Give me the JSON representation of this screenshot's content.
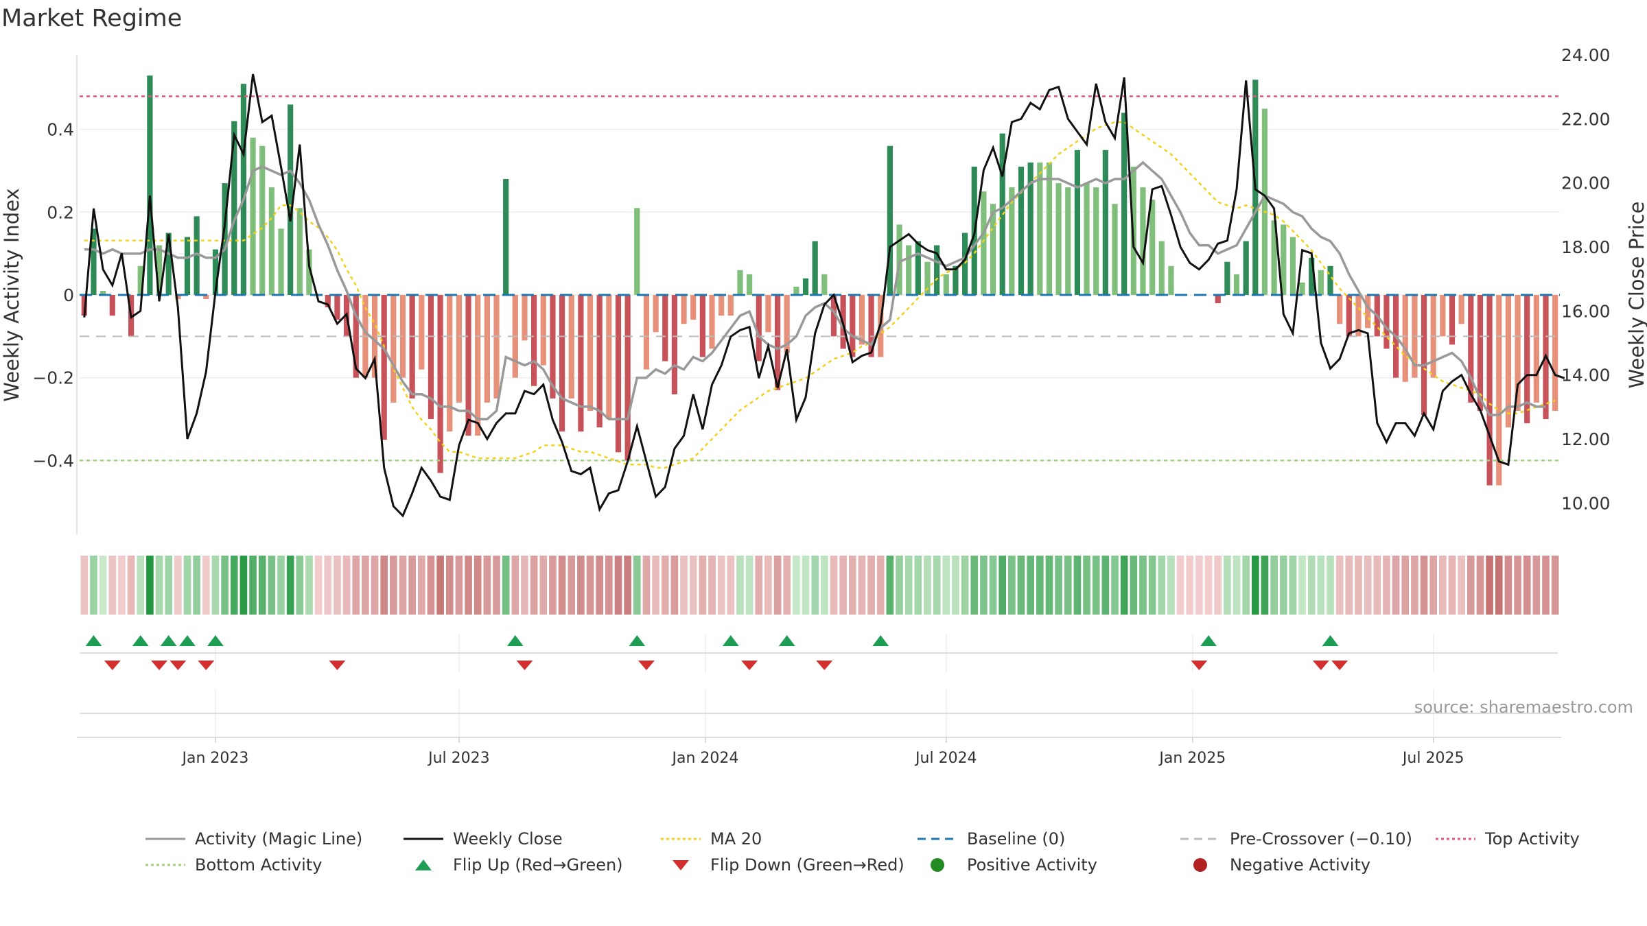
{
  "chart_data": {
    "type": "bar",
    "title": "Market Regime",
    "source_note": "source: sharemaestro.com",
    "y_left_label": "Weekly Activity Index",
    "y_right_label": "Weekly Close Price",
    "y_left_ticks": [
      "0.4",
      "0.2",
      "0",
      "−0.2",
      "−0.4"
    ],
    "y_left_tick_values": [
      0.4,
      0.2,
      0,
      -0.2,
      -0.4
    ],
    "y_right_ticks": [
      "24.00",
      "22.00",
      "20.00",
      "18.00",
      "16.00",
      "14.00",
      "12.00",
      "10.00"
    ],
    "y_right_tick_values": [
      24,
      22,
      20,
      18,
      16,
      14,
      12,
      10
    ],
    "y_left_range": [
      -0.58,
      0.58
    ],
    "y_right_range": [
      9.0,
      24.0
    ],
    "x_tick_labels": [
      "Jan 2023",
      "Jul 2023",
      "Jan 2024",
      "Jul 2024",
      "Jan 2025",
      "Jul 2025"
    ],
    "x_tick_weeks": [
      14,
      40,
      66.3,
      92,
      118.3,
      144
    ],
    "reference_lines": {
      "baseline": 0,
      "pre_crossover": -0.1,
      "top_activity": 0.48,
      "bottom_activity": -0.4
    },
    "activity": [
      -0.05,
      0.16,
      0.01,
      -0.05,
      0,
      -0.1,
      0.07,
      0.53,
      0.12,
      0.15,
      -0.01,
      0.14,
      0.19,
      -0.01,
      0.11,
      0.27,
      0.42,
      0.51,
      0.38,
      0.36,
      0.26,
      0.16,
      0.46,
      0.21,
      0.11,
      0,
      -0.03,
      -0.06,
      -0.1,
      -0.2,
      -0.2,
      -0.2,
      -0.35,
      -0.26,
      -0.2,
      -0.25,
      -0.18,
      -0.3,
      -0.43,
      -0.33,
      -0.26,
      -0.34,
      -0.34,
      -0.26,
      -0.25,
      0.28,
      -0.2,
      -0.11,
      -0.22,
      -0.17,
      -0.25,
      -0.33,
      -0.25,
      -0.33,
      -0.28,
      -0.32,
      -0.3,
      -0.38,
      -0.4,
      0.21,
      -0.18,
      -0.09,
      -0.16,
      -0.24,
      -0.07,
      -0.06,
      -0.15,
      -0.13,
      -0.05,
      -0.05,
      0.06,
      0.05,
      -0.16,
      -0.09,
      -0.23,
      -0.14,
      0.02,
      0.04,
      0.13,
      0.05,
      -0.1,
      -0.13,
      -0.15,
      -0.12,
      -0.15,
      -0.15,
      0.36,
      0.17,
      0.12,
      0.13,
      0.08,
      0.12,
      0.05,
      0.07,
      0.15,
      0.31,
      0.25,
      0.22,
      0.39,
      0.26,
      0.31,
      0.32,
      0.32,
      0.32,
      0.27,
      0.26,
      0.35,
      0.27,
      0.26,
      0.35,
      0.22,
      0.44,
      0.31,
      0.26,
      0.23,
      0.13,
      0.07,
      0,
      0,
      0,
      0,
      -0.02,
      0.08,
      0.05,
      0.13,
      0.52,
      0.45,
      0.18,
      0.17,
      0.14,
      0.03,
      0.09,
      0.06,
      0.07,
      -0.07,
      -0.1,
      -0.1,
      -0.08,
      -0.1,
      -0.13,
      -0.2,
      -0.21,
      -0.2,
      -0.29,
      -0.2,
      -0.1,
      -0.12,
      -0.07,
      -0.26,
      -0.28,
      -0.46,
      -0.46,
      -0.32,
      -0.28,
      -0.31,
      -0.26,
      -0.3,
      -0.28
    ],
    "activity_magic_line": [
      0.11,
      0.11,
      0.1,
      0.11,
      0.1,
      0.1,
      0.1,
      0.11,
      0.11,
      0.1,
      0.09,
      0.09,
      0.1,
      0.09,
      0.09,
      0.11,
      0.18,
      0.23,
      0.3,
      0.31,
      0.3,
      0.29,
      0.3,
      0.27,
      0.23,
      0.17,
      0.12,
      0.06,
      0.01,
      -0.05,
      -0.09,
      -0.11,
      -0.13,
      -0.17,
      -0.21,
      -0.24,
      -0.24,
      -0.25,
      -0.27,
      -0.27,
      -0.28,
      -0.28,
      -0.3,
      -0.3,
      -0.28,
      -0.15,
      -0.16,
      -0.17,
      -0.16,
      -0.18,
      -0.22,
      -0.25,
      -0.26,
      -0.27,
      -0.27,
      -0.28,
      -0.3,
      -0.3,
      -0.3,
      -0.2,
      -0.2,
      -0.18,
      -0.19,
      -0.17,
      -0.18,
      -0.15,
      -0.16,
      -0.14,
      -0.11,
      -0.08,
      -0.05,
      -0.04,
      -0.1,
      -0.12,
      -0.13,
      -0.12,
      -0.1,
      -0.05,
      -0.03,
      -0.02,
      -0.04,
      -0.08,
      -0.1,
      -0.11,
      -0.12,
      -0.08,
      -0.06,
      0.08,
      0.09,
      0.1,
      0.09,
      0.08,
      0.07,
      0.08,
      0.09,
      0.12,
      0.15,
      0.2,
      0.21,
      0.23,
      0.25,
      0.27,
      0.28,
      0.28,
      0.28,
      0.27,
      0.26,
      0.27,
      0.28,
      0.27,
      0.28,
      0.28,
      0.3,
      0.32,
      0.3,
      0.28,
      0.24,
      0.2,
      0.15,
      0.12,
      0.12,
      0.1,
      0.11,
      0.12,
      0.16,
      0.2,
      0.24,
      0.23,
      0.22,
      0.2,
      0.19,
      0.16,
      0.14,
      0.13,
      0.1,
      0.05,
      0.01,
      -0.03,
      -0.05,
      -0.08,
      -0.1,
      -0.13,
      -0.17,
      -0.17,
      -0.16,
      -0.15,
      -0.14,
      -0.16,
      -0.2,
      -0.25,
      -0.29,
      -0.29,
      -0.27,
      -0.27,
      -0.26,
      -0.27,
      -0.27
    ],
    "weekly_close": [
      15.8,
      19.2,
      17.3,
      16.8,
      17.8,
      15.8,
      16.0,
      19.6,
      16.3,
      18.4,
      16.1,
      12.0,
      12.8,
      14.1,
      16.6,
      18.7,
      21.5,
      20.9,
      23.4,
      21.9,
      22.1,
      20.5,
      18.8,
      21.2,
      17.4,
      16.3,
      16.2,
      15.6,
      15.9,
      14.2,
      13.9,
      14.5,
      11.1,
      9.9,
      9.6,
      10.3,
      11.1,
      10.7,
      10.2,
      10.1,
      11.8,
      12.6,
      12.5,
      12.0,
      12.5,
      12.8,
      12.8,
      13.5,
      13.4,
      13.7,
      12.6,
      11.9,
      11.0,
      10.9,
      11.1,
      9.8,
      10.3,
      10.4,
      11.3,
      12.4,
      11.3,
      10.2,
      10.5,
      11.7,
      12.1,
      13.4,
      12.3,
      13.7,
      14.3,
      15.2,
      15.4,
      15.5,
      13.9,
      14.9,
      13.6,
      14.8,
      12.6,
      13.3,
      15.3,
      16.2,
      16.5,
      15.6,
      14.4,
      14.6,
      14.7,
      15.6,
      18.0,
      18.2,
      18.4,
      18.1,
      17.9,
      17.8,
      17.3,
      17.3,
      17.6,
      18.4,
      20.4,
      21.1,
      20.2,
      21.9,
      22.0,
      22.5,
      22.3,
      22.9,
      23.0,
      22.0,
      21.6,
      21.2,
      23.1,
      21.9,
      21.4,
      23.3,
      18.0,
      17.5,
      19.8,
      19.9,
      19.0,
      18.0,
      17.5,
      17.3,
      17.6,
      18.1,
      18.2,
      19.8,
      23.2,
      19.8,
      19.6,
      19.2,
      15.9,
      15.3,
      17.9,
      17.8,
      15.0,
      14.2,
      14.5,
      15.3,
      15.4,
      15.3,
      12.5,
      11.9,
      12.5,
      12.5,
      12.1,
      12.8,
      12.3,
      13.5,
      13.8,
      14.0,
      13.4,
      12.9,
      12.1,
      11.3,
      11.2,
      13.7,
      14.0,
      14.0,
      14.6,
      14.0,
      13.9
    ],
    "ma20": [
      18.2,
      18.2,
      18.2,
      18.2,
      18.2,
      18.2,
      18.2,
      18.2,
      18.2,
      18.2,
      18.2,
      18.2,
      18.2,
      18.2,
      18.2,
      18.2,
      18.2,
      18.2,
      18.4,
      18.6,
      18.9,
      19.3,
      19.3,
      19.1,
      18.8,
      18.6,
      18.3,
      17.9,
      17.3,
      16.8,
      16.1,
      15.6,
      14.9,
      14.2,
      13.6,
      13.0,
      12.6,
      12.3,
      11.9,
      11.6,
      11.6,
      11.5,
      11.4,
      11.4,
      11.4,
      11.4,
      11.4,
      11.5,
      11.6,
      11.8,
      11.8,
      11.8,
      11.7,
      11.6,
      11.6,
      11.5,
      11.4,
      11.3,
      11.2,
      11.2,
      11.2,
      11.1,
      11.1,
      11.2,
      11.3,
      11.4,
      11.7,
      12.0,
      12.3,
      12.6,
      12.9,
      13.1,
      13.3,
      13.5,
      13.6,
      13.7,
      13.8,
      13.9,
      14.1,
      14.3,
      14.5,
      14.6,
      14.7,
      14.9,
      15.0,
      15.3,
      15.5,
      15.8,
      16.1,
      16.4,
      16.7,
      17.0,
      17.2,
      17.3,
      17.5,
      17.8,
      18.2,
      18.6,
      19.0,
      19.4,
      19.7,
      20.0,
      20.3,
      20.6,
      20.9,
      21.1,
      21.3,
      21.5,
      21.7,
      21.8,
      21.9,
      21.9,
      21.7,
      21.5,
      21.3,
      21.1,
      20.9,
      20.6,
      20.3,
      20.0,
      19.7,
      19.4,
      19.3,
      19.2,
      19.3,
      19.2,
      19.1,
      19.0,
      18.8,
      18.5,
      18.2,
      17.9,
      17.5,
      17.1,
      16.7,
      16.4,
      16.1,
      15.8,
      15.5,
      15.2,
      14.9,
      14.6,
      14.4,
      14.2,
      14.0,
      13.8,
      13.7,
      13.6,
      13.5,
      13.4,
      13.1,
      12.9,
      12.8,
      12.8,
      12.9,
      13.0,
      13.1,
      13.2
    ],
    "flip_up_weeks": [
      1,
      6,
      9,
      11,
      14,
      46,
      59,
      69,
      75,
      85,
      120,
      133
    ],
    "flip_down_weeks": [
      3,
      8,
      10,
      13,
      27,
      47,
      60,
      71,
      79,
      119,
      132,
      134
    ],
    "legend_position": "bottom",
    "grid": true,
    "colors": {
      "strong_green": "#2e8b57",
      "light_green": "#7fbf7b",
      "strong_red": "#c8525a",
      "light_red": "#e7917a",
      "magic_line": "#999999",
      "weekly_close": "#111111",
      "ma20": "#f2d11a",
      "baseline": "#1f77b4",
      "pre_crossover": "#bbbbbb",
      "top_activity": "#e0577a",
      "bottom_activity": "#9fd27f",
      "flip_up": "#1f9d55",
      "flip_down": "#d32f2f",
      "positive_activity": "#228b22",
      "negative_activity": "#b22222"
    },
    "legend": [
      {
        "label": "Activity (Magic Line)",
        "marker": "line",
        "color": "#999999",
        "dash": ""
      },
      {
        "label": "Weekly Close",
        "marker": "line",
        "color": "#111111",
        "dash": ""
      },
      {
        "label": "MA 20",
        "marker": "line",
        "color": "#f2d11a",
        "dash": "4 4"
      },
      {
        "label": "Baseline (0)",
        "marker": "line",
        "color": "#1f77b4",
        "dash": "12 8"
      },
      {
        "label": "Pre-Crossover (−0.10)",
        "marker": "line",
        "color": "#bbbbbb",
        "dash": "12 8"
      },
      {
        "label": "Top Activity",
        "marker": "line",
        "color": "#e0577a",
        "dash": "4 4"
      },
      {
        "label": "Bottom Activity",
        "marker": "line",
        "color": "#9fd27f",
        "dash": "4 4"
      },
      {
        "label": "Flip Up (Red→Green)",
        "marker": "triangle-up",
        "color": "#1f9d55"
      },
      {
        "label": "Flip Down (Green→Red)",
        "marker": "triangle-down",
        "color": "#d32f2f"
      },
      {
        "label": "Positive Activity",
        "marker": "circle",
        "color": "#228b22"
      },
      {
        "label": "Negative Activity",
        "marker": "circle",
        "color": "#b22222"
      }
    ]
  }
}
